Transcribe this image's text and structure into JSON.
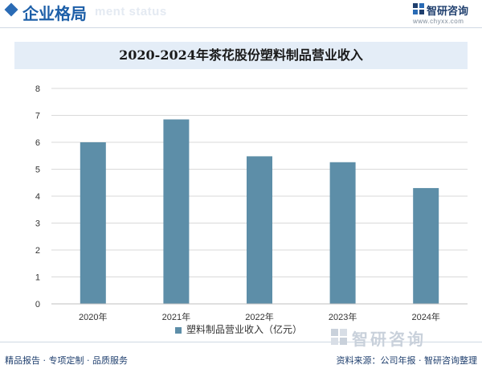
{
  "header": {
    "section_title": "企业格局",
    "section_subtitle": "ment status",
    "logo_name": "智研咨询",
    "logo_url": "www.chyxx.com"
  },
  "watermark": {
    "name": "智研咨询"
  },
  "footer": {
    "left": "精品报告 · 专项定制 · 品质服务",
    "right": "资料来源：公司年报 · 智研咨询整理"
  },
  "colors": {
    "bar": "#5d8ea8",
    "accent": "#1d5fa8",
    "title_band": "#e4edf7"
  },
  "chart_data": {
    "type": "bar",
    "title": "2020-2024年茶花股份塑料制品营业收入",
    "categories": [
      "2020年",
      "2021年",
      "2022年",
      "2023年",
      "2024年"
    ],
    "series": [
      {
        "name": "塑料制品营业收入（亿元）",
        "values": [
          6.0,
          6.85,
          5.48,
          5.26,
          4.3
        ]
      }
    ],
    "ylim": [
      0,
      8
    ],
    "yticks": [
      0,
      1,
      2,
      3,
      4,
      5,
      6,
      7,
      8
    ],
    "grid": true,
    "legend": "bottom"
  }
}
